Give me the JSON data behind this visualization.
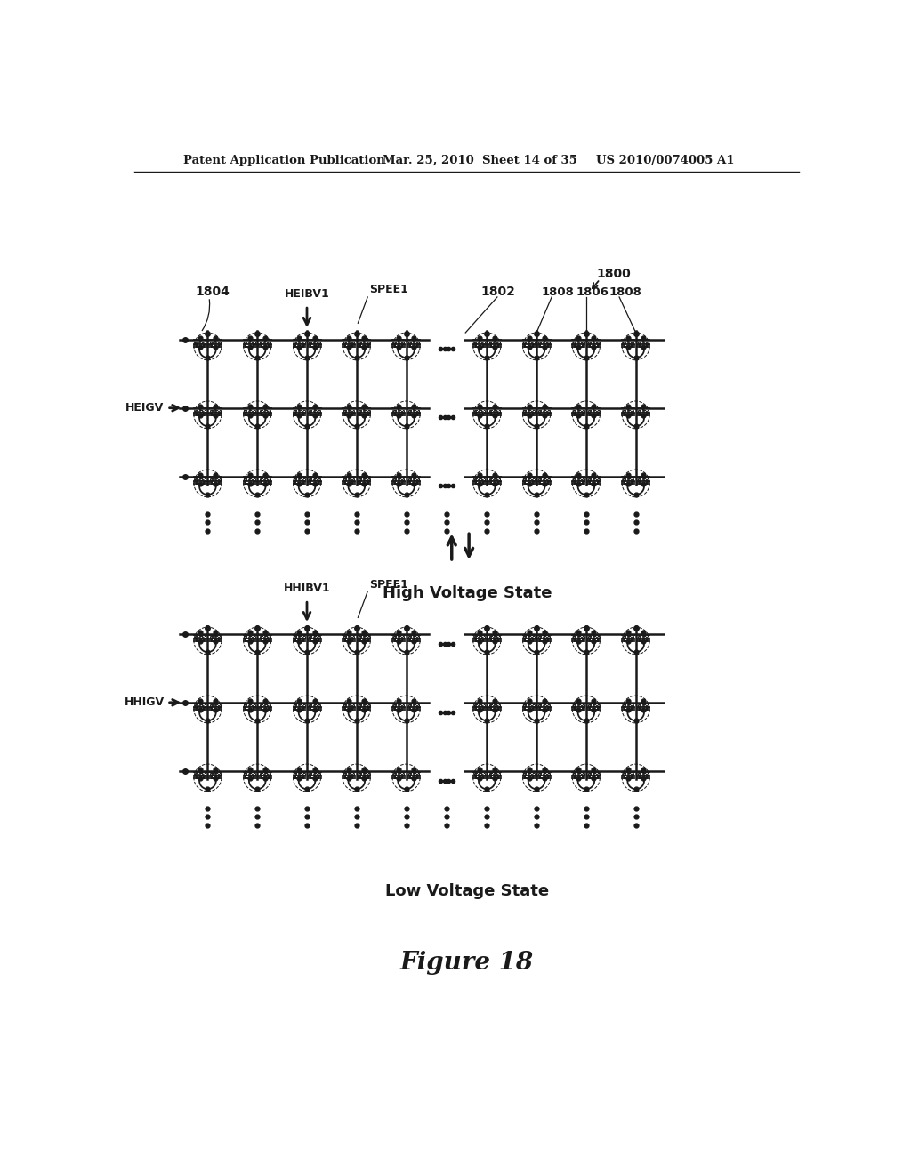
{
  "title": "Figure 18",
  "header_left": "Patent Application Publication",
  "header_center": "Mar. 25, 2010  Sheet 14 of 35",
  "header_right": "US 2010/0074005 A1",
  "top_label": "High Voltage State",
  "bottom_label": "Low Voltage State",
  "top_diagram": {
    "ref_number": "1800",
    "ref_1804": "1804",
    "ref_1802": "1802",
    "ref_1808a": "1808",
    "ref_1806": "1806",
    "ref_1808b": "1808",
    "signal_top": "HEIBV1",
    "signal_spee": "SPEE1",
    "signal_left": "HEIGV"
  },
  "bottom_diagram": {
    "signal_top": "HHIBV1",
    "signal_spee": "SPEE1",
    "signal_left": "HHIGV"
  },
  "bg_color": "#ffffff",
  "line_color": "#1a1a1a",
  "text_color": "#1a1a1a"
}
